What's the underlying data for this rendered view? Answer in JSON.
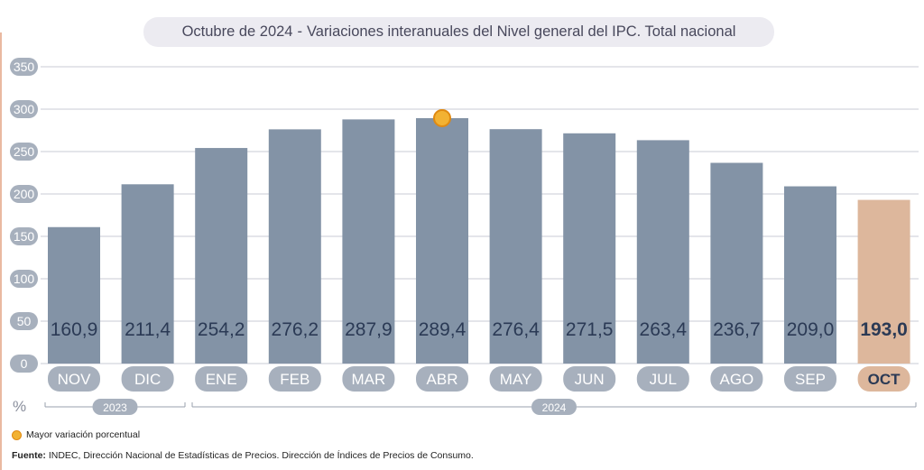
{
  "header": {
    "title_prefix": "Octubre de 2024",
    "title_sep": "-",
    "title_main": "Variaciones interanuales del Nivel general del IPC. Total nacional"
  },
  "unit_symbol": "%",
  "year_groups": [
    {
      "label": "2023"
    },
    {
      "label": "2024"
    }
  ],
  "legend": {
    "highlight_label": "Mayor variación porcentual"
  },
  "source": {
    "label": "Fuente:",
    "text": "INDEC, Dirección Nacional de Estadísticas de Precios. Dirección de Índices de Precios de Consumo."
  },
  "colors": {
    "bar": "#8393a6",
    "bar_highlight": "#ddb79c",
    "label_pill": "#a7b0bd",
    "label_pill_highlight": "#ddb79c",
    "value_text": "#2b3a55",
    "marker": "#f2b233",
    "grid": "#c9cbd4"
  },
  "chart_data": {
    "type": "bar",
    "title": "Variaciones interanuales del Nivel general del IPC. Total nacional",
    "categories": [
      "NOV",
      "DIC",
      "ENE",
      "FEB",
      "MAR",
      "ABR",
      "MAY",
      "JUN",
      "JUL",
      "AGO",
      "SEP",
      "OCT"
    ],
    "values": [
      160.9,
      211.4,
      254.2,
      276.2,
      287.9,
      289.4,
      276.4,
      271.5,
      263.4,
      236.7,
      209.0,
      193.0
    ],
    "value_labels": [
      "160,9",
      "211,4",
      "254,2",
      "276,2",
      "287,9",
      "289,4",
      "276,4",
      "271,5",
      "263,4",
      "236,7",
      "209,0",
      "193,0"
    ],
    "highlight_index": 11,
    "max_marker_index": 5,
    "ylim": [
      0,
      350
    ],
    "yticks": [
      0,
      50,
      100,
      150,
      200,
      250,
      300,
      350
    ],
    "ytick_labels": [
      "0",
      "50",
      "100",
      "150",
      "200",
      "250",
      "300",
      "350"
    ],
    "grid": true
  }
}
